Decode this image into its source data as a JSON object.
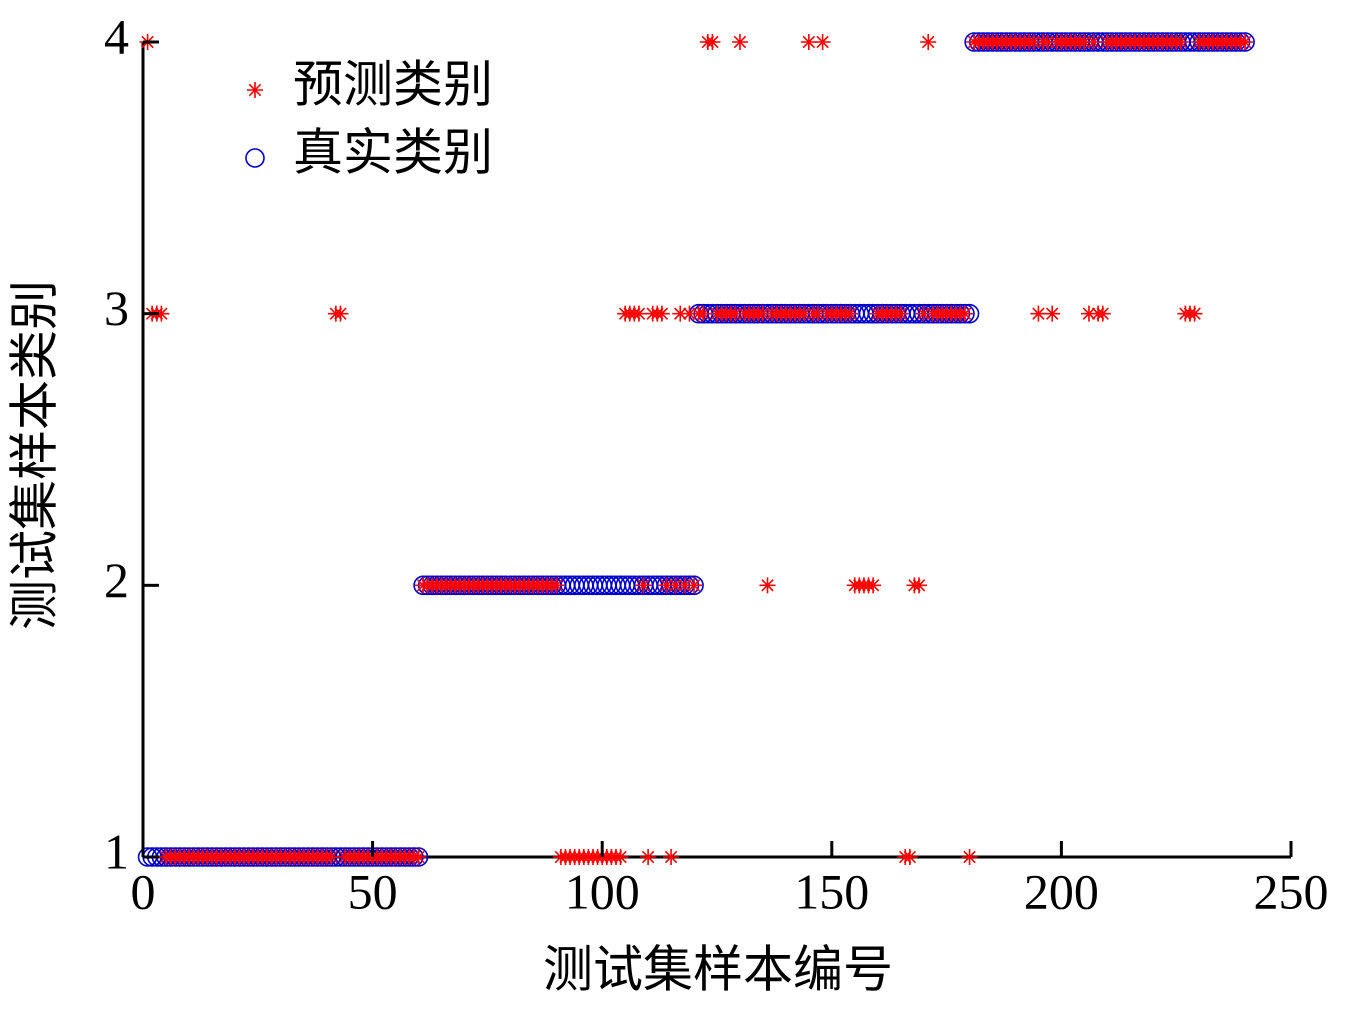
{
  "chart_data": {
    "type": "scatter",
    "x_label": "测试集样本编号",
    "y_label": "测试集样本类别",
    "xlim": [
      0,
      250
    ],
    "xticks": [
      0,
      50,
      100,
      150,
      200,
      250
    ],
    "ylim": [
      1,
      4
    ],
    "yticks": [
      1,
      2,
      3,
      4
    ],
    "grid": false,
    "legend": "upper left",
    "x": [
      1,
      2,
      3,
      4,
      5,
      6,
      7,
      8,
      9,
      10,
      11,
      12,
      13,
      14,
      15,
      16,
      17,
      18,
      19,
      20,
      21,
      22,
      23,
      24,
      25,
      26,
      27,
      28,
      29,
      30,
      31,
      32,
      33,
      34,
      35,
      36,
      37,
      38,
      39,
      40,
      41,
      42,
      43,
      44,
      45,
      46,
      47,
      48,
      49,
      50,
      51,
      52,
      53,
      54,
      55,
      56,
      57,
      58,
      59,
      60,
      61,
      62,
      63,
      64,
      65,
      66,
      67,
      68,
      69,
      70,
      71,
      72,
      73,
      74,
      75,
      76,
      77,
      78,
      79,
      80,
      81,
      82,
      83,
      84,
      85,
      86,
      87,
      88,
      89,
      90,
      91,
      92,
      93,
      94,
      95,
      96,
      97,
      98,
      99,
      100,
      101,
      102,
      103,
      104,
      105,
      106,
      107,
      108,
      109,
      110,
      111,
      112,
      113,
      114,
      115,
      116,
      117,
      118,
      119,
      120,
      121,
      122,
      123,
      124,
      125,
      126,
      127,
      128,
      129,
      130,
      131,
      132,
      133,
      134,
      135,
      136,
      137,
      138,
      139,
      140,
      141,
      142,
      143,
      144,
      145,
      146,
      147,
      148,
      149,
      150,
      151,
      152,
      153,
      154,
      155,
      156,
      157,
      158,
      159,
      160,
      161,
      162,
      163,
      164,
      165,
      166,
      167,
      168,
      169,
      170,
      171,
      172,
      173,
      174,
      175,
      176,
      177,
      178,
      179,
      180,
      181,
      182,
      183,
      184,
      185,
      186,
      187,
      188,
      189,
      190,
      191,
      192,
      193,
      194,
      195,
      196,
      197,
      198,
      199,
      200,
      201,
      202,
      203,
      204,
      205,
      206,
      207,
      208,
      209,
      210,
      211,
      212,
      213,
      214,
      215,
      216,
      217,
      218,
      219,
      220,
      221,
      222,
      223,
      224,
      225,
      226,
      227,
      228,
      229,
      230,
      231,
      232,
      233,
      234,
      235,
      236,
      237,
      238,
      239,
      240
    ],
    "series": [
      {
        "name": "预测类别",
        "color": "#ff0000",
        "marker": "star",
        "values": [
          4,
          3,
          3,
          3,
          1,
          1,
          1,
          1,
          1,
          1,
          1,
          1,
          1,
          1,
          1,
          1,
          1,
          1,
          1,
          1,
          1,
          1,
          1,
          1,
          1,
          1,
          1,
          1,
          1,
          1,
          1,
          1,
          1,
          1,
          1,
          1,
          1,
          1,
          1,
          1,
          1,
          3,
          3,
          1,
          1,
          1,
          1,
          1,
          1,
          1,
          1,
          1,
          1,
          1,
          1,
          1,
          1,
          1,
          1,
          1,
          2,
          2,
          2,
          2,
          2,
          2,
          2,
          2,
          2,
          2,
          2,
          2,
          2,
          2,
          2,
          2,
          2,
          2,
          2,
          2,
          2,
          2,
          2,
          2,
          2,
          2,
          2,
          2,
          2,
          2,
          1,
          1,
          1,
          1,
          1,
          1,
          1,
          1,
          1,
          1,
          1,
          1,
          1,
          1,
          3,
          3,
          3,
          3,
          2,
          1,
          3,
          3,
          3,
          2,
          1,
          2,
          3,
          2,
          3,
          2,
          3,
          3,
          4,
          4,
          3,
          3,
          3,
          3,
          3,
          4,
          3,
          3,
          3,
          3,
          3,
          2,
          3,
          3,
          3,
          3,
          3,
          3,
          3,
          3,
          4,
          3,
          3,
          4,
          3,
          3,
          3,
          3,
          3,
          3,
          2,
          2,
          2,
          2,
          2,
          3,
          3,
          3,
          3,
          3,
          3,
          1,
          1,
          2,
          2,
          3,
          4,
          3,
          3,
          3,
          3,
          3,
          3,
          3,
          3,
          1,
          4,
          4,
          4,
          4,
          4,
          4,
          4,
          4,
          4,
          4,
          4,
          4,
          4,
          4,
          3,
          4,
          4,
          3,
          4,
          4,
          4,
          4,
          4,
          4,
          4,
          3,
          4,
          3,
          3,
          4,
          4,
          4,
          4,
          4,
          4,
          4,
          4,
          4,
          4,
          4,
          4,
          4,
          4,
          4,
          4,
          4,
          3,
          3,
          3,
          4,
          4,
          4,
          4,
          4,
          4,
          4,
          4,
          4,
          4,
          4
        ]
      },
      {
        "name": "真实类别",
        "color": "#0000cc",
        "marker": "circle",
        "values": [
          1,
          1,
          1,
          1,
          1,
          1,
          1,
          1,
          1,
          1,
          1,
          1,
          1,
          1,
          1,
          1,
          1,
          1,
          1,
          1,
          1,
          1,
          1,
          1,
          1,
          1,
          1,
          1,
          1,
          1,
          1,
          1,
          1,
          1,
          1,
          1,
          1,
          1,
          1,
          1,
          1,
          1,
          1,
          1,
          1,
          1,
          1,
          1,
          1,
          1,
          1,
          1,
          1,
          1,
          1,
          1,
          1,
          1,
          1,
          1,
          2,
          2,
          2,
          2,
          2,
          2,
          2,
          2,
          2,
          2,
          2,
          2,
          2,
          2,
          2,
          2,
          2,
          2,
          2,
          2,
          2,
          2,
          2,
          2,
          2,
          2,
          2,
          2,
          2,
          2,
          2,
          2,
          2,
          2,
          2,
          2,
          2,
          2,
          2,
          2,
          2,
          2,
          2,
          2,
          2,
          2,
          2,
          2,
          2,
          2,
          2,
          2,
          2,
          2,
          2,
          2,
          2,
          2,
          2,
          2,
          3,
          3,
          3,
          3,
          3,
          3,
          3,
          3,
          3,
          3,
          3,
          3,
          3,
          3,
          3,
          3,
          3,
          3,
          3,
          3,
          3,
          3,
          3,
          3,
          3,
          3,
          3,
          3,
          3,
          3,
          3,
          3,
          3,
          3,
          3,
          3,
          3,
          3,
          3,
          3,
          3,
          3,
          3,
          3,
          3,
          3,
          3,
          3,
          3,
          3,
          3,
          3,
          3,
          3,
          3,
          3,
          3,
          3,
          3,
          3,
          4,
          4,
          4,
          4,
          4,
          4,
          4,
          4,
          4,
          4,
          4,
          4,
          4,
          4,
          4,
          4,
          4,
          4,
          4,
          4,
          4,
          4,
          4,
          4,
          4,
          4,
          4,
          4,
          4,
          4,
          4,
          4,
          4,
          4,
          4,
          4,
          4,
          4,
          4,
          4,
          4,
          4,
          4,
          4,
          4,
          4,
          4,
          4,
          4,
          4,
          4,
          4,
          4,
          4,
          4,
          4,
          4,
          4,
          4,
          4
        ]
      }
    ]
  }
}
